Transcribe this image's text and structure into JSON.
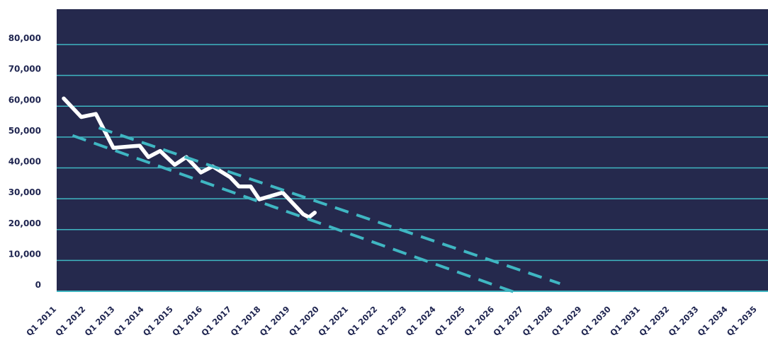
{
  "chart_data": {
    "type": "line",
    "title": "",
    "xlabel": "",
    "ylabel": "",
    "ylim": [
      0,
      80000
    ],
    "y_ticks": [
      {
        "value": 0,
        "label": "0"
      },
      {
        "value": 10000,
        "label": "10,000"
      },
      {
        "value": 20000,
        "label": "20,000"
      },
      {
        "value": 30000,
        "label": "30,000"
      },
      {
        "value": 40000,
        "label": "40,000"
      },
      {
        "value": 50000,
        "label": "50,000"
      },
      {
        "value": 60000,
        "label": "60,000"
      },
      {
        "value": 70000,
        "label": "70,000"
      },
      {
        "value": 80000,
        "label": "80,000"
      }
    ],
    "categories": [
      "Q1 2011",
      "Q1 2012",
      "Q1 2013",
      "Q1 2014",
      "Q1 2015",
      "Q1 2016",
      "Q1 2017",
      "Q1 2018",
      "Q1 2019",
      "Q1 2020",
      "Q1 2021",
      "Q1 2022",
      "Q1 2023",
      "Q1 2024",
      "Q1 2025",
      "Q1 2026",
      "Q1 2027",
      "Q1 2028",
      "Q1 2029",
      "Q1 2030",
      "Q1 2031",
      "Q1 2032",
      "Q1 2033",
      "Q1 2034",
      "Q1 2035"
    ],
    "grid": true,
    "legend": "none",
    "series": [
      {
        "style": "solid",
        "color": "#ffffff",
        "points": [
          {
            "x": 2011.0,
            "y": 62500
          },
          {
            "x": 2011.6,
            "y": 56500
          },
          {
            "x": 2012.1,
            "y": 57500
          },
          {
            "x": 2012.7,
            "y": 46500
          },
          {
            "x": 2013.3,
            "y": 47000
          },
          {
            "x": 2013.6,
            "y": 47200
          },
          {
            "x": 2013.9,
            "y": 43500
          },
          {
            "x": 2014.3,
            "y": 45500
          },
          {
            "x": 2014.8,
            "y": 41000
          },
          {
            "x": 2015.2,
            "y": 43500
          },
          {
            "x": 2015.7,
            "y": 38500
          },
          {
            "x": 2016.1,
            "y": 40500
          },
          {
            "x": 2016.7,
            "y": 37000
          },
          {
            "x": 2017.0,
            "y": 34000
          },
          {
            "x": 2017.4,
            "y": 34000
          },
          {
            "x": 2017.7,
            "y": 29800
          },
          {
            "x": 2018.5,
            "y": 32000
          },
          {
            "x": 2019.2,
            "y": 25000
          },
          {
            "x": 2019.4,
            "y": 24000
          },
          {
            "x": 2019.6,
            "y": 25500
          }
        ]
      },
      {
        "style": "dashed",
        "color": "#3fb6c2",
        "points": [
          {
            "x": 2012.2,
            "y": 53000
          },
          {
            "x": 2028.0,
            "y": 2500
          }
        ]
      },
      {
        "style": "dashed",
        "color": "#3fb6c2",
        "points": [
          {
            "x": 2011.3,
            "y": 50500
          },
          {
            "x": 2026.5,
            "y": -500
          }
        ]
      }
    ],
    "colors": {
      "plot_background": "#25294d",
      "gridline": "#3fb6c2",
      "axis_line": "#3fb6c2",
      "tick_text": "#1f2550"
    }
  }
}
